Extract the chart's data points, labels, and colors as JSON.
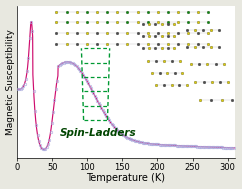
{
  "title": "",
  "xlabel": "Temperature (K)",
  "ylabel": "Magnetic Susceptibility",
  "xlim": [
    0,
    310
  ],
  "background_color": "#ffffff",
  "plot_bg": "#ffffff",
  "outer_bg": "#e8e8e0",
  "spin_ladders_text": "Spin-Ladders",
  "spin_ladders_color": "#004400",
  "spin_ladders_fontsize": 7.5,
  "xlabel_fontsize": 7,
  "ylabel_fontsize": 6.5,
  "tick_fontsize": 6,
  "curve_color_open": "#aaaadd",
  "curve_color_fit": "#cc0066",
  "xticks": [
    0,
    50,
    100,
    150,
    200,
    250,
    300
  ],
  "ladder_color": "#009933",
  "peak_T": 20,
  "peak_val": 1.0,
  "broad_max_T": 75,
  "broad_max_val": 0.62,
  "dip_T": 35,
  "dip_val": 0.05
}
